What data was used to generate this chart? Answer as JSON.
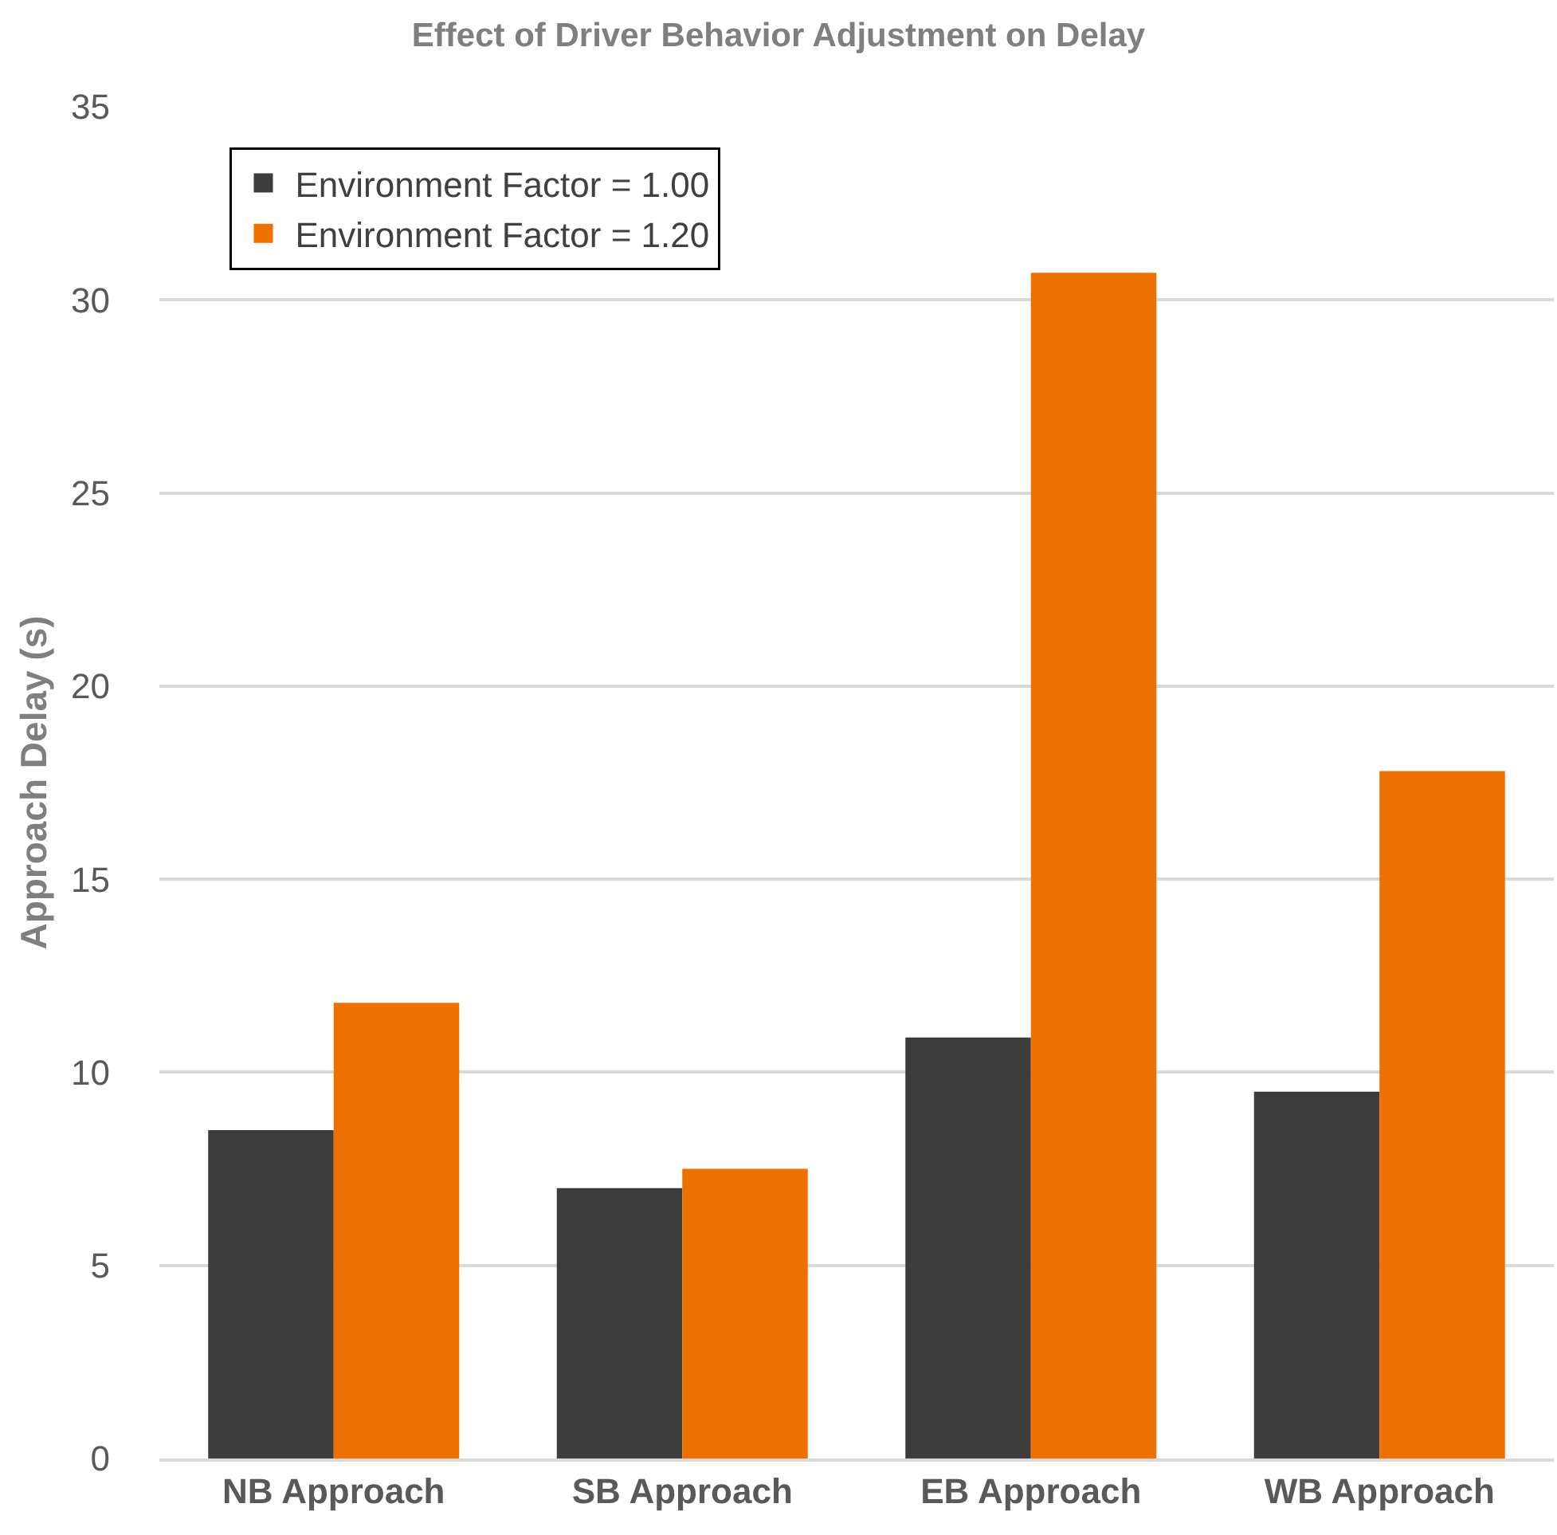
{
  "chart_data": {
    "type": "bar",
    "title": "Effect of Driver Behavior Adjustment on Delay",
    "ylabel": "Approach Delay (s)",
    "categories": [
      "NB Approach",
      "SB Approach",
      "EB Approach",
      "WB Approach"
    ],
    "series": [
      {
        "name": "Environment Factor = 1.00",
        "color": "#3c3c3c",
        "values": [
          8.5,
          7.0,
          10.9,
          9.5
        ]
      },
      {
        "name": "Environment Factor = 1.20",
        "color": "#ee7100",
        "values": [
          11.8,
          7.5,
          30.7,
          17.8
        ]
      }
    ],
    "ylim": [
      0,
      35
    ],
    "yticks": [
      0,
      5,
      10,
      15,
      20,
      25,
      30,
      35
    ],
    "grid": "y",
    "legend": "top left"
  }
}
